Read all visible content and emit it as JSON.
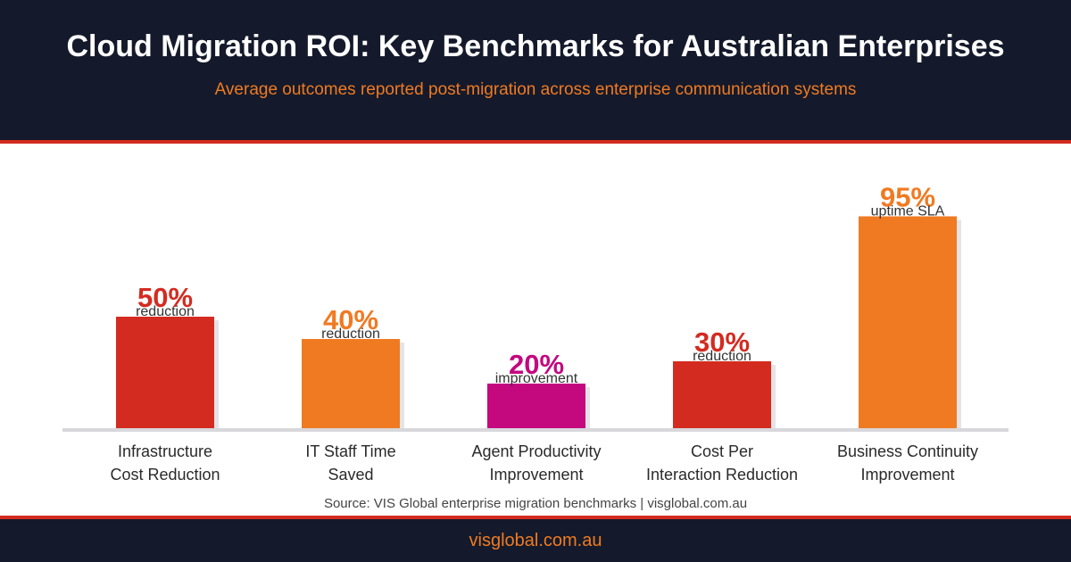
{
  "header": {
    "title": "Cloud Migration ROI: Key Benchmarks for Australian Enterprises",
    "subtitle": "Average outcomes reported post-migration across enterprise communication systems"
  },
  "colors": {
    "navy": "#141a2b",
    "red": "#d42b20",
    "orange": "#f07a22",
    "magenta": "#c4087e",
    "baseline": "#d8d8dc"
  },
  "chart_data": {
    "type": "bar",
    "title": "Cloud Migration ROI: Key Benchmarks for Australian Enterprises",
    "subtitle": "Average outcomes reported post-migration across enterprise communication systems",
    "categories": [
      [
        "Infrastructure",
        "Cost Reduction"
      ],
      [
        "IT Staff Time",
        "Saved"
      ],
      [
        "Agent Productivity",
        "Improvement"
      ],
      [
        "Cost Per",
        "Interaction Reduction"
      ],
      [
        "Business Continuity",
        "Improvement"
      ]
    ],
    "values": [
      50,
      40,
      20,
      30,
      95
    ],
    "value_labels": [
      "50%",
      "40%",
      "20%",
      "30%",
      "95%"
    ],
    "unit_labels": [
      "reduction",
      "reduction",
      "improvement",
      "reduction",
      "uptime SLA"
    ],
    "bar_colors": [
      "#d42b20",
      "#f07a22",
      "#c4087e",
      "#d42b20",
      "#f07a22"
    ],
    "ylim": [
      0,
      100
    ],
    "xlabel": "",
    "ylabel": "",
    "grid": false,
    "legend": "none"
  },
  "source": "Source: VIS Global enterprise migration benchmarks | visglobal.com.au",
  "footer": {
    "link": "visglobal.com.au"
  }
}
